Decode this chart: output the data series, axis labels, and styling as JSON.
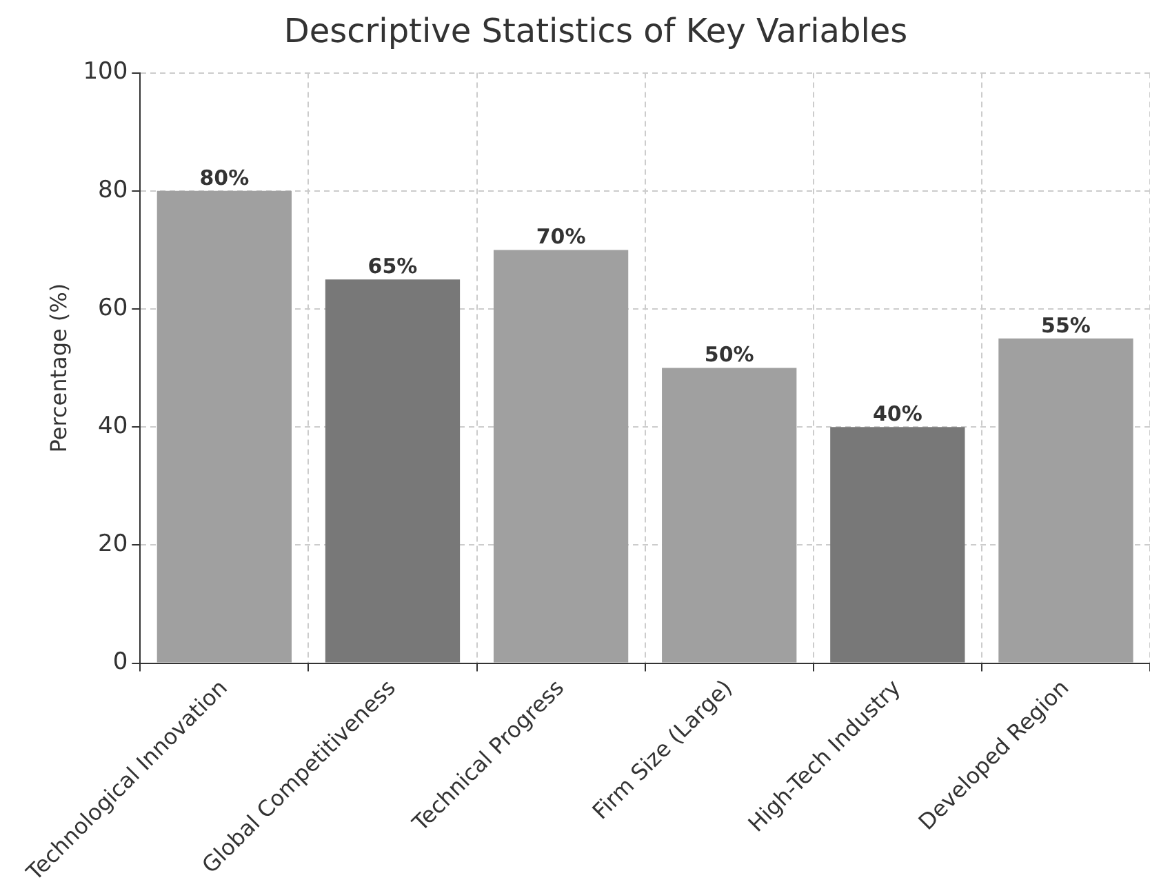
{
  "chart_data": {
    "type": "bar",
    "title": "Descriptive Statistics of Key Variables",
    "ylabel": "Percentage (%)",
    "categories": [
      "Technological Innovation",
      "Global Competitiveness",
      "Technical Progress",
      "Firm Size (Large)",
      "High-Tech Industry",
      "Developed Region"
    ],
    "values": [
      80,
      65,
      70,
      50,
      40,
      55
    ],
    "colors": [
      "#a0a0a0",
      "#787878",
      "#a0a0a0",
      "#a0a0a0",
      "#787878",
      "#a0a0a0"
    ],
    "value_labels": [
      "80%",
      "65%",
      "70%",
      "50%",
      "40%",
      "55%"
    ],
    "ylim": [
      0,
      100
    ],
    "yticks": [
      0,
      20,
      40,
      60,
      80,
      100
    ],
    "grid": true,
    "legend": false
  }
}
